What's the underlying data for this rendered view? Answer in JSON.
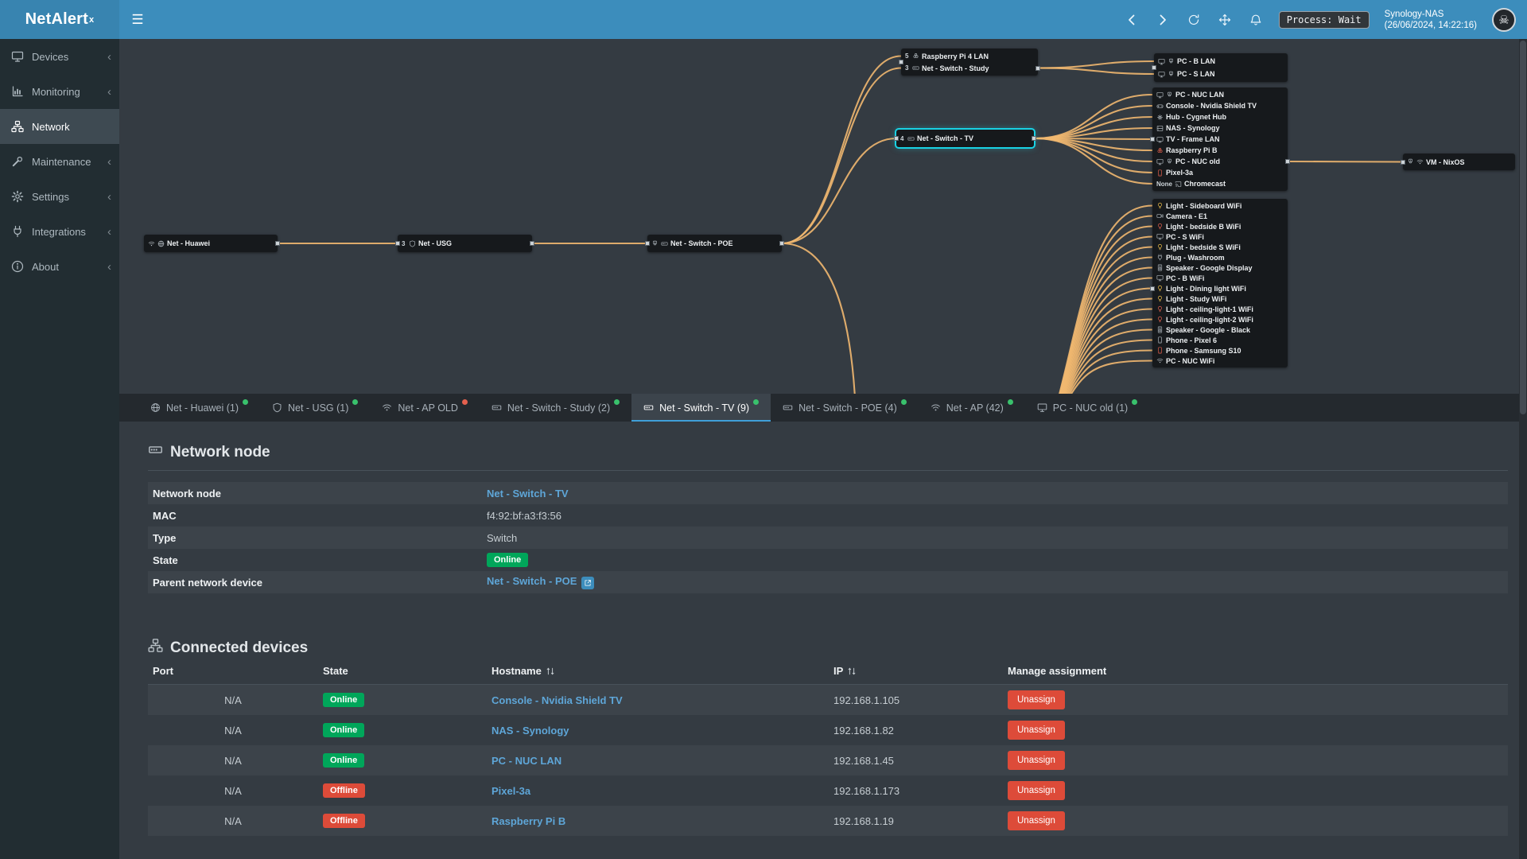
{
  "app": {
    "name": "NetAlert",
    "sup": "x"
  },
  "topbar": {
    "process_label": "Process: Wait",
    "server_name": "Synology-NAS",
    "server_time": "(26/06/2024, 14:22:16)"
  },
  "sidebar": [
    {
      "label": "Devices",
      "icon": "display",
      "active": false
    },
    {
      "label": "Monitoring",
      "icon": "chart",
      "active": false
    },
    {
      "label": "Network",
      "icon": "network",
      "active": true
    },
    {
      "label": "Maintenance",
      "icon": "wrench",
      "active": false
    },
    {
      "label": "Settings",
      "icon": "gear",
      "active": false
    },
    {
      "label": "Integrations",
      "icon": "plug",
      "active": false
    },
    {
      "label": "About",
      "icon": "info",
      "active": false
    }
  ],
  "diagram": {
    "groups": [
      {
        "id": "huawei",
        "rows": [
          {
            "icons": [
              "wifi",
              "globe"
            ],
            "label": "Net - Huawei"
          }
        ]
      },
      {
        "id": "usg",
        "rows": [
          {
            "port": "3",
            "icons": [
              "shield"
            ],
            "label": "Net - USG"
          }
        ]
      },
      {
        "id": "poe",
        "rows": [
          {
            "icons": [
              "lan",
              "switch"
            ],
            "label": "Net - Switch - POE"
          }
        ]
      },
      {
        "id": "study",
        "rows": [
          {
            "port": "5",
            "icons": [
              "pi"
            ],
            "label": "Raspberry Pi 4 LAN"
          },
          {
            "port": "3",
            "icons": [
              "switch"
            ],
            "label": "Net - Switch - Study"
          }
        ]
      },
      {
        "id": "tv",
        "selected": true,
        "rows": [
          {
            "port": "4",
            "icons": [
              "switch"
            ],
            "label": "Net - Switch - TV"
          }
        ]
      },
      {
        "id": "pcgroup",
        "rows": [
          {
            "icons": [
              "display",
              "lan"
            ],
            "label": "PC - B LAN"
          },
          {
            "icons": [
              "display",
              "lan"
            ],
            "label": "PC - S LAN"
          }
        ]
      },
      {
        "id": "tvkids",
        "rows": [
          {
            "icons": [
              "display",
              "lan"
            ],
            "label": "PC - NUC LAN"
          },
          {
            "icons": [
              "console"
            ],
            "label": "Console - Nvidia Shield TV"
          },
          {
            "icons": [
              "hub"
            ],
            "label": "Hub - Cygnet Hub"
          },
          {
            "icons": [
              "nas"
            ],
            "label": "NAS - Synology"
          },
          {
            "icons": [
              "tv"
            ],
            "label": "TV - Frame LAN"
          },
          {
            "icons": [
              "pi"
            ],
            "label": "Raspberry Pi B",
            "color": "#e4604e"
          },
          {
            "icons": [
              "display",
              "lan"
            ],
            "label": "PC - NUC old"
          },
          {
            "icons": [
              "phone"
            ],
            "label": "Pixel-3a",
            "color": "#e4604e"
          },
          {
            "port": "None",
            "icons": [
              "cast"
            ],
            "label": "Chromecast"
          }
        ]
      },
      {
        "id": "wifikids",
        "rows": [
          {
            "icons": [
              "bulb"
            ],
            "color": "#f0c04a",
            "label": "Light - Sideboard WiFi"
          },
          {
            "icons": [
              "camera"
            ],
            "label": "Camera - E1"
          },
          {
            "icons": [
              "bulb"
            ],
            "color": "#e4604e",
            "label": "Light - bedside B WiFi"
          },
          {
            "icons": [
              "display"
            ],
            "label": "PC - S WiFi"
          },
          {
            "icons": [
              "bulb"
            ],
            "color": "#f0c04a",
            "label": "Light - bedside S WiFi"
          },
          {
            "icons": [
              "plug"
            ],
            "label": "Plug - Washroom"
          },
          {
            "icons": [
              "speaker"
            ],
            "label": "Speaker - Google Display"
          },
          {
            "icons": [
              "display"
            ],
            "label": "PC - B WiFi"
          },
          {
            "icons": [
              "bulb"
            ],
            "color": "#f0c04a",
            "label": "Light - Dining light WiFi"
          },
          {
            "icons": [
              "bulb"
            ],
            "color": "#f0c04a",
            "label": "Light - Study WiFi"
          },
          {
            "icons": [
              "bulb"
            ],
            "color": "#e4604e",
            "label": "Light - ceiling-light-1 WiFi"
          },
          {
            "icons": [
              "bulb"
            ],
            "color": "#e4604e",
            "label": "Light - ceiling-light-2 WiFi"
          },
          {
            "icons": [
              "speaker"
            ],
            "label": "Speaker - Google - Black"
          },
          {
            "icons": [
              "phone"
            ],
            "label": "Phone - Pixel 6"
          },
          {
            "icons": [
              "phone"
            ],
            "color": "#e4604e",
            "label": "Phone - Samsung S10"
          },
          {
            "icons": [
              "wifi"
            ],
            "label": "PC - NUC WiFi"
          }
        ]
      },
      {
        "id": "vm",
        "rows": [
          {
            "icons": [
              "lan",
              "wifi"
            ],
            "label": "VM - NixOS"
          }
        ]
      }
    ]
  },
  "tabs": [
    {
      "label": "Net - Huawei (1)",
      "icon": "globe",
      "dot": "#39c16c",
      "active": false
    },
    {
      "label": "Net - USG (1)",
      "icon": "shield",
      "dot": "#39c16c",
      "active": false
    },
    {
      "label": "Net - AP OLD",
      "icon": "wifi",
      "dot": "#e4604e",
      "active": false
    },
    {
      "label": "Net - Switch - Study (2)",
      "icon": "switch",
      "dot": "#39c16c",
      "active": false
    },
    {
      "label": "Net - Switch - TV (9)",
      "icon": "switch",
      "dot": "#39c16c",
      "active": true
    },
    {
      "label": "Net - Switch - POE (4)",
      "icon": "switch",
      "dot": "#39c16c",
      "active": false
    },
    {
      "label": "Net - AP (42)",
      "icon": "wifi",
      "dot": "#39c16c",
      "active": false
    },
    {
      "label": "PC - NUC old (1)",
      "icon": "display",
      "dot": "#39c16c",
      "active": false
    }
  ],
  "network_node": {
    "section_title": "Network node",
    "rows": [
      {
        "label": "Network node",
        "value": "Net - Switch - TV",
        "type": "link"
      },
      {
        "label": "MAC",
        "value": "f4:92:bf:a3:f3:56",
        "type": "text"
      },
      {
        "label": "Type",
        "value": "Switch",
        "type": "text"
      },
      {
        "label": "State",
        "value": "Online",
        "type": "badge"
      },
      {
        "label": "Parent network device",
        "value": "Net - Switch - POE",
        "type": "link_ext"
      }
    ]
  },
  "connected_devices": {
    "section_title": "Connected devices",
    "columns": [
      {
        "label": "Port",
        "sortable": false
      },
      {
        "label": "State",
        "sortable": false
      },
      {
        "label": "Hostname",
        "sortable": true
      },
      {
        "label": "IP",
        "sortable": true
      },
      {
        "label": "Manage assignment",
        "sortable": false
      }
    ],
    "rows": [
      {
        "port": "N/A",
        "state": "Online",
        "hostname": "Console - Nvidia Shield TV",
        "ip": "192.168.1.105",
        "action": "Unassign"
      },
      {
        "port": "N/A",
        "state": "Online",
        "hostname": "NAS - Synology",
        "ip": "192.168.1.82",
        "action": "Unassign"
      },
      {
        "port": "N/A",
        "state": "Online",
        "hostname": "PC - NUC LAN",
        "ip": "192.168.1.45",
        "action": "Unassign"
      },
      {
        "port": "N/A",
        "state": "Offline",
        "hostname": "Pixel-3a",
        "ip": "192.168.1.173",
        "action": "Unassign"
      },
      {
        "port": "N/A",
        "state": "Offline",
        "hostname": "Raspberry Pi B",
        "ip": "192.168.1.19",
        "action": "Unassign"
      }
    ]
  }
}
